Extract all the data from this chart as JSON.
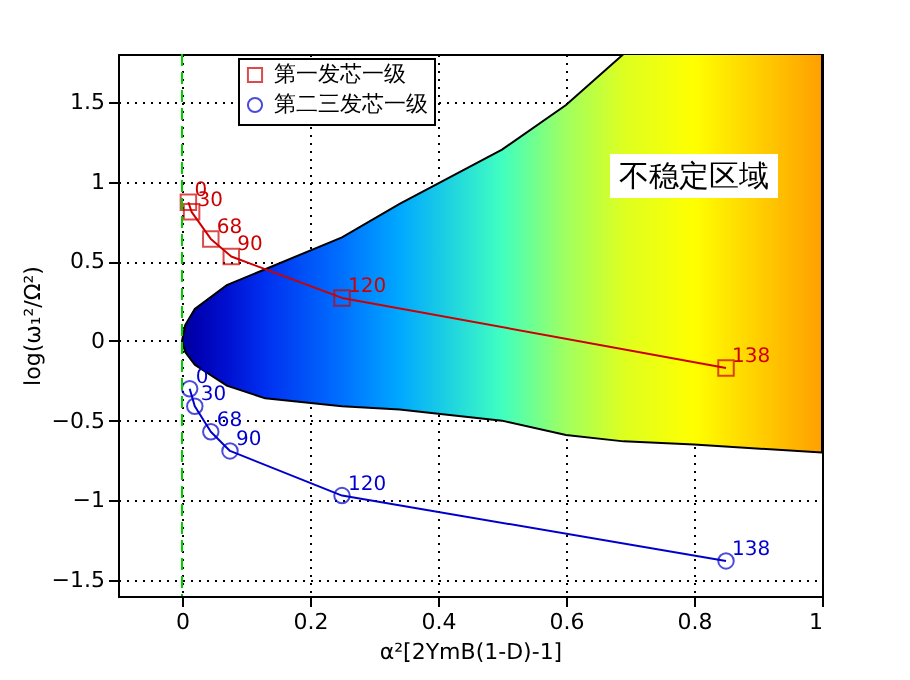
{
  "chart_data": {
    "type": "line",
    "xlabel": "α²[2YmB(1-D)-1]",
    "ylabel": "log(ω₁²/Ω²)",
    "xlim": [
      -0.1,
      1
    ],
    "xticks": [
      0,
      0.2,
      0.4,
      0.6,
      0.8,
      1
    ],
    "ylim": [
      -1.6,
      1.8
    ],
    "yticks": [
      -1.5,
      -1,
      -0.5,
      0,
      0.5,
      1,
      1.5
    ],
    "grid": true,
    "legend": "top",
    "line_style": "solid",
    "series": [
      {
        "type": "line",
        "values": [
          null,
          null,
          null,
          null,
          null,
          null,
          null,
          null,
          null,
          null,
          null,
          null
        ],
        "x": [
          0,
          0.005,
          0.02,
          0.07,
          0.13,
          0.25,
          0.34,
          0.5,
          0.6,
          0.69,
          0.8,
          1.0
        ],
        "lower": [
          0,
          -0.07,
          -0.15,
          -0.28,
          -0.36,
          -0.41,
          -0.43,
          -0.5,
          -0.59,
          -0.63,
          -0.65,
          -0.7
        ],
        "upper": [
          0,
          0.1,
          0.2,
          0.35,
          0.45,
          0.65,
          0.86,
          1.2,
          1.48,
          1.8,
          1.8,
          1.8
        ],
        "colors": [
          "#00008f",
          "#00009f",
          "#0000af",
          "#0010d0",
          "#0030f0",
          "#0070ff",
          "#00a8ff",
          "#40ffc0",
          "#a0ff60",
          "#ddff20",
          "#ffff00",
          "#ff9f00"
        ]
      },
      {
        "name": "第一发芯一级",
        "color": "#cc0000",
        "marker": "square",
        "x": [
          0.01,
          0.015,
          0.045,
          0.077,
          0.25,
          0.85
        ],
        "values": [
          0.87,
          0.81,
          0.64,
          0.53,
          0.27,
          -0.17
        ]
      },
      {
        "name": "第二三发芯一级",
        "color": "#0000cc",
        "marker": "circle",
        "x": [
          0.012,
          0.02,
          0.045,
          0.075,
          0.25,
          0.85
        ],
        "values": [
          -0.3,
          -0.41,
          -0.57,
          -0.69,
          -0.97,
          -1.38
        ]
      }
    ],
    "ref_lines": [
      {
        "axis": "x",
        "value": 0,
        "color": "#00cc00",
        "line_style": "dashed"
      }
    ],
    "annotations": [
      "不稳定区域",
      {
        "text": "0",
        "x": 0.01,
        "y": 0.87
      },
      {
        "text": "30",
        "x": 0.015,
        "y": 0.81
      },
      {
        "text": "68",
        "x": 0.045,
        "y": 0.64
      },
      {
        "text": "90",
        "x": 0.077,
        "y": 0.53
      },
      {
        "text": "120",
        "x": 0.25,
        "y": 0.27
      },
      {
        "text": "138",
        "x": 0.85,
        "y": -0.17
      },
      {
        "text": "0",
        "x": 0.012,
        "y": -0.3
      },
      {
        "text": "30",
        "x": 0.02,
        "y": -0.41
      },
      {
        "text": "68",
        "x": 0.045,
        "y": -0.57
      },
      {
        "text": "90",
        "x": 0.075,
        "y": -0.69
      },
      {
        "text": "120",
        "x": 0.25,
        "y": -0.97
      },
      {
        "text": "138",
        "x": 0.85,
        "y": -1.38
      }
    ]
  }
}
